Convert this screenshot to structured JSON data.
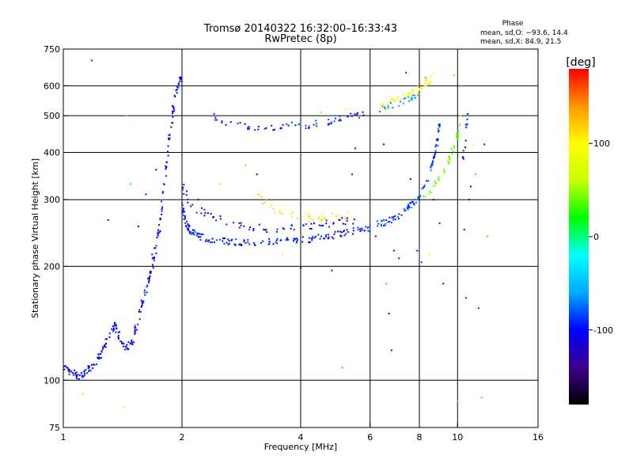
{
  "chart_data": {
    "type": "scatter",
    "title": "Tromsø 20140322 16:32:00–16:33:43",
    "subtitle": "RwPretec (8p)",
    "xlabel": "Frequency [MHz]",
    "ylabel": "Stationary phase Virtual Height [km]",
    "xscale": "log",
    "yscale": "log",
    "xlim": [
      1,
      16
    ],
    "ylim": [
      75,
      750
    ],
    "xticks": [
      1,
      2,
      4,
      6,
      8,
      10,
      16
    ],
    "yticks": [
      75,
      100,
      200,
      300,
      400,
      500,
      600,
      750
    ],
    "xgrid": [
      2,
      4,
      6,
      8,
      10
    ],
    "ygrid": [
      100,
      200,
      300,
      400,
      500,
      600
    ],
    "stats": {
      "title": "Phase",
      "lines": [
        "mean, sd,O: −93.6, 14.4",
        "mean, sd,X:  84.9, 21.5"
      ]
    },
    "colorbar": {
      "label": "[deg]",
      "ticks": [
        100,
        0,
        -100
      ],
      "range": [
        -180,
        180
      ],
      "colors": [
        "#000000",
        "#3c008c",
        "#0000ff",
        "#00aaff",
        "#00ffff",
        "#00ff00",
        "#c8ff00",
        "#ffff00",
        "#ff9600",
        "#ff0000"
      ]
    },
    "traces": [
      {
        "phase": -100,
        "spread": 0.012,
        "n": 12,
        "points": [
          [
            1.0,
            108
          ],
          [
            1.05,
            104
          ],
          [
            1.1,
            103
          ],
          [
            1.15,
            106
          ],
          [
            1.2,
            110
          ],
          [
            1.25,
            118
          ],
          [
            1.3,
            130
          ],
          [
            1.35,
            140
          ],
          [
            1.4,
            128
          ],
          [
            1.45,
            122
          ],
          [
            1.5,
            125
          ],
          [
            1.55,
            145
          ],
          [
            1.6,
            165
          ],
          [
            1.65,
            185
          ],
          [
            1.7,
            210
          ],
          [
            1.75,
            250
          ],
          [
            1.8,
            320
          ],
          [
            1.85,
            420
          ],
          [
            1.9,
            520
          ],
          [
            1.95,
            600
          ],
          [
            2.0,
            630
          ]
        ]
      },
      {
        "phase": -95,
        "spread": 0.01,
        "n": 14,
        "points": [
          [
            2.0,
            290
          ],
          [
            2.05,
            260
          ],
          [
            2.1,
            248
          ],
          [
            2.2,
            240
          ],
          [
            2.4,
            235
          ],
          [
            2.7,
            232
          ],
          [
            3.0,
            231
          ],
          [
            3.5,
            232
          ],
          [
            4.0,
            234
          ],
          [
            4.5,
            238
          ],
          [
            5.0,
            243
          ],
          [
            5.5,
            248
          ],
          [
            6.0,
            252
          ]
        ]
      },
      {
        "phase": -100,
        "spread": 0.012,
        "n": 8,
        "points": [
          [
            2.0,
            330
          ],
          [
            2.1,
            290
          ],
          [
            2.3,
            275
          ],
          [
            2.6,
            262
          ],
          [
            3.0,
            255
          ],
          [
            3.5,
            250
          ],
          [
            4.0,
            252
          ],
          [
            4.5,
            258
          ],
          [
            5.0,
            262
          ],
          [
            5.5,
            265
          ]
        ]
      },
      {
        "phase": -95,
        "spread": 0.01,
        "n": 8,
        "points": [
          [
            2.4,
            500
          ],
          [
            2.6,
            480
          ],
          [
            3.0,
            468
          ],
          [
            3.5,
            465
          ],
          [
            4.0,
            468
          ],
          [
            4.5,
            478
          ],
          [
            5.0,
            490
          ],
          [
            5.5,
            500
          ],
          [
            5.8,
            505
          ]
        ]
      },
      {
        "phase": -85,
        "spread": 0.01,
        "n": 12,
        "points": [
          [
            6.2,
            258
          ],
          [
            6.6,
            262
          ],
          [
            7.0,
            270
          ],
          [
            7.5,
            285
          ],
          [
            7.9,
            300
          ],
          [
            8.3,
            330
          ],
          [
            8.7,
            380
          ],
          [
            8.9,
            430
          ],
          [
            9.0,
            480
          ]
        ]
      },
      {
        "phase": 110,
        "spread": 0.012,
        "n": 8,
        "points": [
          [
            3.1,
            305
          ],
          [
            3.4,
            282
          ],
          [
            3.8,
            272
          ],
          [
            4.3,
            268
          ],
          [
            4.8,
            270
          ],
          [
            5.3,
            272
          ]
        ]
      },
      {
        "phase": 40,
        "spread": 0.01,
        "n": 8,
        "points": [
          [
            8.2,
            300
          ],
          [
            8.8,
            330
          ],
          [
            9.3,
            360
          ],
          [
            9.7,
            400
          ],
          [
            10.0,
            440
          ],
          [
            10.2,
            500
          ]
        ]
      },
      {
        "phase": 95,
        "spread": 0.01,
        "n": 10,
        "points": [
          [
            6.3,
            530
          ],
          [
            6.8,
            545
          ],
          [
            7.3,
            560
          ],
          [
            7.8,
            580
          ],
          [
            8.3,
            610
          ],
          [
            8.8,
            640
          ]
        ]
      },
      {
        "phase": -60,
        "spread": 0.01,
        "n": 8,
        "points": [
          [
            6.3,
            520
          ],
          [
            7.0,
            535
          ],
          [
            7.6,
            555
          ],
          [
            8.0,
            575
          ]
        ]
      },
      {
        "phase": -100,
        "spread": 0.01,
        "n": 6,
        "points": [
          [
            10.3,
            380
          ],
          [
            10.5,
            440
          ],
          [
            10.6,
            520
          ]
        ]
      }
    ],
    "scatter": [
      [
        1.12,
        92,
        130
      ],
      [
        1.18,
        700,
        -90
      ],
      [
        1.3,
        265,
        -100
      ],
      [
        1.42,
        85,
        80
      ],
      [
        1.45,
        500,
        140
      ],
      [
        1.48,
        330,
        -40
      ],
      [
        1.55,
        255,
        -100
      ],
      [
        1.62,
        310,
        -100
      ],
      [
        1.68,
        215,
        -100
      ],
      [
        1.72,
        360,
        -100
      ],
      [
        1.8,
        330,
        -100
      ],
      [
        2.2,
        300,
        -100
      ],
      [
        2.5,
        330,
        120
      ],
      [
        2.9,
        370,
        40
      ],
      [
        3.1,
        350,
        -95
      ],
      [
        3.6,
        215,
        80
      ],
      [
        3.8,
        480,
        -90
      ],
      [
        4.0,
        198,
        -100
      ],
      [
        4.2,
        470,
        150
      ],
      [
        4.5,
        510,
        120
      ],
      [
        4.8,
        195,
        -110
      ],
      [
        5.1,
        108,
        150
      ],
      [
        5.2,
        520,
        100
      ],
      [
        5.4,
        350,
        -90
      ],
      [
        5.5,
        410,
        -100
      ],
      [
        6.2,
        240,
        -100
      ],
      [
        6.5,
        420,
        -110
      ],
      [
        6.6,
        180,
        20
      ],
      [
        6.7,
        150,
        -100
      ],
      [
        6.8,
        120,
        -100
      ],
      [
        6.9,
        220,
        -100
      ],
      [
        7.1,
        210,
        -90
      ],
      [
        7.4,
        650,
        -90
      ],
      [
        7.6,
        340,
        -100
      ],
      [
        7.9,
        220,
        -100
      ],
      [
        8.1,
        205,
        -90
      ],
      [
        8.3,
        630,
        150
      ],
      [
        8.5,
        215,
        100
      ],
      [
        8.7,
        300,
        -100
      ],
      [
        9.2,
        180,
        -100
      ],
      [
        9.8,
        640,
        130
      ],
      [
        10.0,
        88,
        30
      ],
      [
        10.2,
        600,
        150
      ],
      [
        10.4,
        250,
        -90
      ],
      [
        10.5,
        165,
        -90
      ],
      [
        10.8,
        325,
        -100
      ],
      [
        11.1,
        350,
        30
      ],
      [
        11.3,
        155,
        -90
      ],
      [
        11.5,
        90,
        140
      ],
      [
        11.7,
        420,
        -100
      ],
      [
        11.9,
        240,
        140
      ],
      [
        10.9,
        420,
        100
      ],
      [
        10.7,
        300,
        -100
      ],
      [
        9.0,
        260,
        -90
      ]
    ]
  }
}
